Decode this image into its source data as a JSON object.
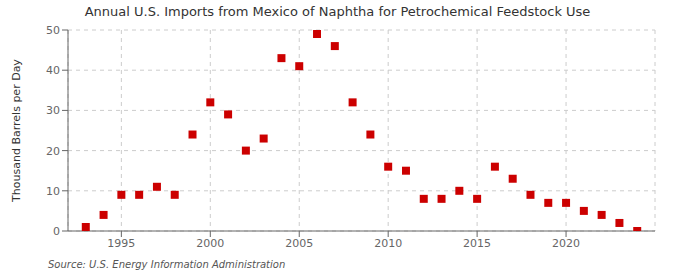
{
  "chart_data": {
    "type": "scatter",
    "title": "Annual U.S. Imports from Mexico of Naphtha for Petrochemical Feedstock Use",
    "ylabel": "Thousand Barrels per Day",
    "annotation": "Source: U.S. Energy Information Administration",
    "x": [
      1993,
      1994,
      1995,
      1996,
      1997,
      1998,
      1999,
      2000,
      2001,
      2002,
      2003,
      2004,
      2005,
      2006,
      2007,
      2008,
      2009,
      2010,
      2011,
      2012,
      2013,
      2014,
      2015,
      2016,
      2017,
      2018,
      2019,
      2020,
      2021,
      2022,
      2023,
      2024
    ],
    "values": [
      1,
      4,
      9,
      9,
      11,
      9,
      24,
      32,
      29,
      20,
      23,
      43,
      41,
      49,
      46,
      32,
      24,
      16,
      15,
      8,
      8,
      10,
      8,
      16,
      13,
      9,
      7,
      7,
      5,
      4,
      2,
      0
    ],
    "color": "#cc0000",
    "marker": "square",
    "xlim": [
      1992,
      2025
    ],
    "xticks": [
      1995,
      2000,
      2005,
      2010,
      2015,
      2020
    ],
    "ylim": [
      0,
      50
    ],
    "yticks": [
      0,
      10,
      20,
      30,
      40,
      50
    ],
    "grid": true
  }
}
